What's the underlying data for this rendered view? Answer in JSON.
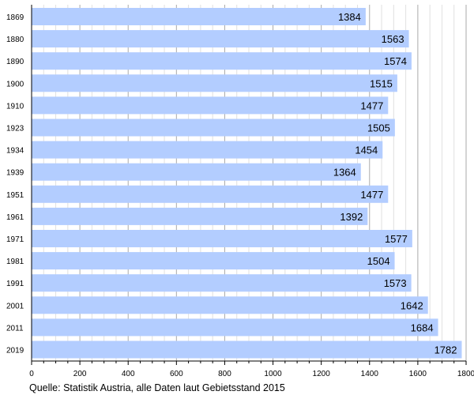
{
  "chart_data": {
    "type": "bar",
    "orientation": "horizontal",
    "categories": [
      "1869",
      "1880",
      "1890",
      "1900",
      "1910",
      "1923",
      "1934",
      "1939",
      "1951",
      "1961",
      "1971",
      "1981",
      "1991",
      "2001",
      "2011",
      "2019"
    ],
    "values": [
      1384,
      1563,
      1574,
      1515,
      1477,
      1505,
      1454,
      1364,
      1477,
      1392,
      1577,
      1504,
      1573,
      1642,
      1684,
      1782
    ],
    "xlim": [
      0,
      1800
    ],
    "xticks": [
      0,
      200,
      400,
      600,
      800,
      1000,
      1200,
      1400,
      1600,
      1800
    ],
    "grid": true,
    "bar_color": "#b3cdff",
    "source": "Quelle: Statistik Austria, alle Daten laut Gebietsstand 2015"
  }
}
